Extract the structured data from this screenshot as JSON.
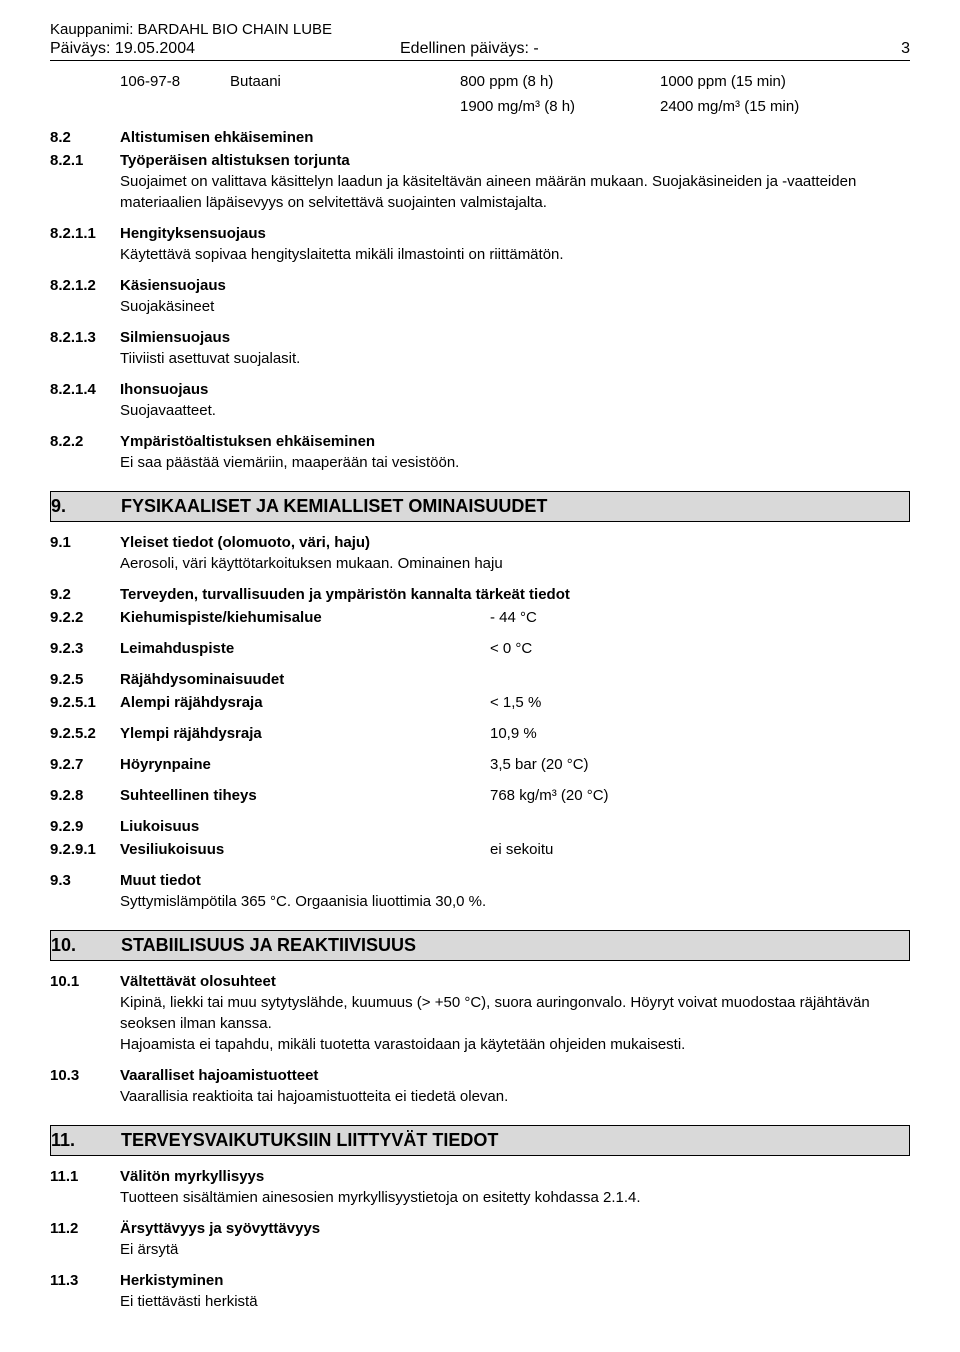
{
  "header": {
    "product_label": "Kauppanimi: BARDAHL BIO CHAIN LUBE",
    "date_label": "Päiväys: 19.05.2004",
    "prev_date_label": "Edellinen päiväys: -",
    "page_number": "3"
  },
  "substance_row": {
    "cas": "106-97-8",
    "name": "Butaani",
    "col3_line1": "800 ppm (8 h)",
    "col3_line2": "1900 mg/m³ (8 h)",
    "col4_line1": "1000 ppm (15 min)",
    "col4_line2": "2400 mg/m³ (15 min)"
  },
  "s8": {
    "r1": {
      "num": "8.2",
      "title": "Altistumisen ehkäiseminen"
    },
    "r2": {
      "num": "8.2.1",
      "title": "Työperäisen altistuksen torjunta",
      "body": "Suojaimet on valittava käsittelyn laadun ja käsiteltävän aineen määrän mukaan. Suojakäsineiden ja -vaatteiden materiaalien läpäisevyys on selvitettävä suojainten valmistajalta."
    },
    "r3": {
      "num": "8.2.1.1",
      "title": "Hengityksensuojaus",
      "body": "Käytettävä sopivaa hengityslaitetta mikäli ilmastointi on riittämätön."
    },
    "r4": {
      "num": "8.2.1.2",
      "title": "Käsiensuojaus",
      "body": "Suojakäsineet"
    },
    "r5": {
      "num": "8.2.1.3",
      "title": "Silmiensuojaus",
      "body": "Tiiviisti asettuvat suojalasit."
    },
    "r6": {
      "num": "8.2.1.4",
      "title": "Ihonsuojaus",
      "body": "Suojavaatteet."
    },
    "r7": {
      "num": "8.2.2",
      "title": "Ympäristöaltistuksen ehkäiseminen",
      "body": "Ei saa päästää viemäriin, maaperään tai vesistöön."
    }
  },
  "section9": {
    "num": "9.",
    "title": "FYSIKAALISET JA KEMIALLISET OMINAISUUDET"
  },
  "s9": {
    "r91": {
      "num": "9.1",
      "title": "Yleiset tiedot (olomuoto, väri, haju)",
      "body": "Aerosoli, väri käyttötarkoituksen mukaan. Ominainen haju"
    },
    "r92": {
      "num": "9.2",
      "title": "Terveyden, turvallisuuden ja ympäristön kannalta tärkeät tiedot"
    },
    "r922": {
      "num": "9.2.2",
      "title": "Kiehumispiste/kiehumisalue",
      "value": "- 44 °C"
    },
    "r923": {
      "num": "9.2.3",
      "title": "Leimahduspiste",
      "value": "< 0 °C"
    },
    "r925": {
      "num": "9.2.5",
      "title": "Räjähdysominaisuudet"
    },
    "r9251": {
      "num": "9.2.5.1",
      "title": "Alempi räjähdysraja",
      "value": "< 1,5 %"
    },
    "r9252": {
      "num": "9.2.5.2",
      "title": "Ylempi räjähdysraja",
      "value": "10,9 %"
    },
    "r927": {
      "num": "9.2.7",
      "title": "Höyrynpaine",
      "value": "3,5 bar  (20 °C)"
    },
    "r928": {
      "num": "9.2.8",
      "title": "Suhteellinen tiheys",
      "value": "768 kg/m³  (20 °C)"
    },
    "r929": {
      "num": "9.2.9",
      "title": "Liukoisuus"
    },
    "r9291": {
      "num": "9.2.9.1",
      "title": "Vesiliukoisuus",
      "value": "ei sekoitu"
    },
    "r93": {
      "num": "9.3",
      "title": "Muut tiedot",
      "body": "Syttymislämpötila  365 °C.     Orgaanisia liuottimia 30,0 %."
    }
  },
  "section10": {
    "num": "10.",
    "title": "STABIILISUUS JA REAKTIIVISUUS"
  },
  "s10": {
    "r101": {
      "num": "10.1",
      "title": "Vältettävät olosuhteet",
      "body": "Kipinä, liekki tai muu sytytyslähde, kuumuus (> +50 °C), suora auringonvalo. Höyryt voivat muodostaa räjähtävän seoksen ilman kanssa.",
      "body2": "Hajoamista ei tapahdu, mikäli tuotetta varastoidaan ja käytetään ohjeiden mukaisesti."
    },
    "r103": {
      "num": "10.3",
      "title": "Vaaralliset hajoamistuotteet",
      "body": "Vaarallisia reaktioita tai hajoamistuotteita ei tiedetä olevan."
    }
  },
  "section11": {
    "num": "11.",
    "title": "TERVEYSVAIKUTUKSIIN LIITTYVÄT TIEDOT"
  },
  "s11": {
    "r111": {
      "num": "11.1",
      "title": "Välitön myrkyllisyys",
      "body": "Tuotteen sisältämien ainesosien myrkyllisyystietoja on esitetty kohdassa 2.1.4."
    },
    "r112": {
      "num": "11.2",
      "title": "Ärsyttävyys ja syövyttävyys",
      "body": "Ei ärsytä"
    },
    "r113": {
      "num": "11.3",
      "title": "Herkistyminen",
      "body": "Ei tiettävästi herkistä"
    }
  }
}
